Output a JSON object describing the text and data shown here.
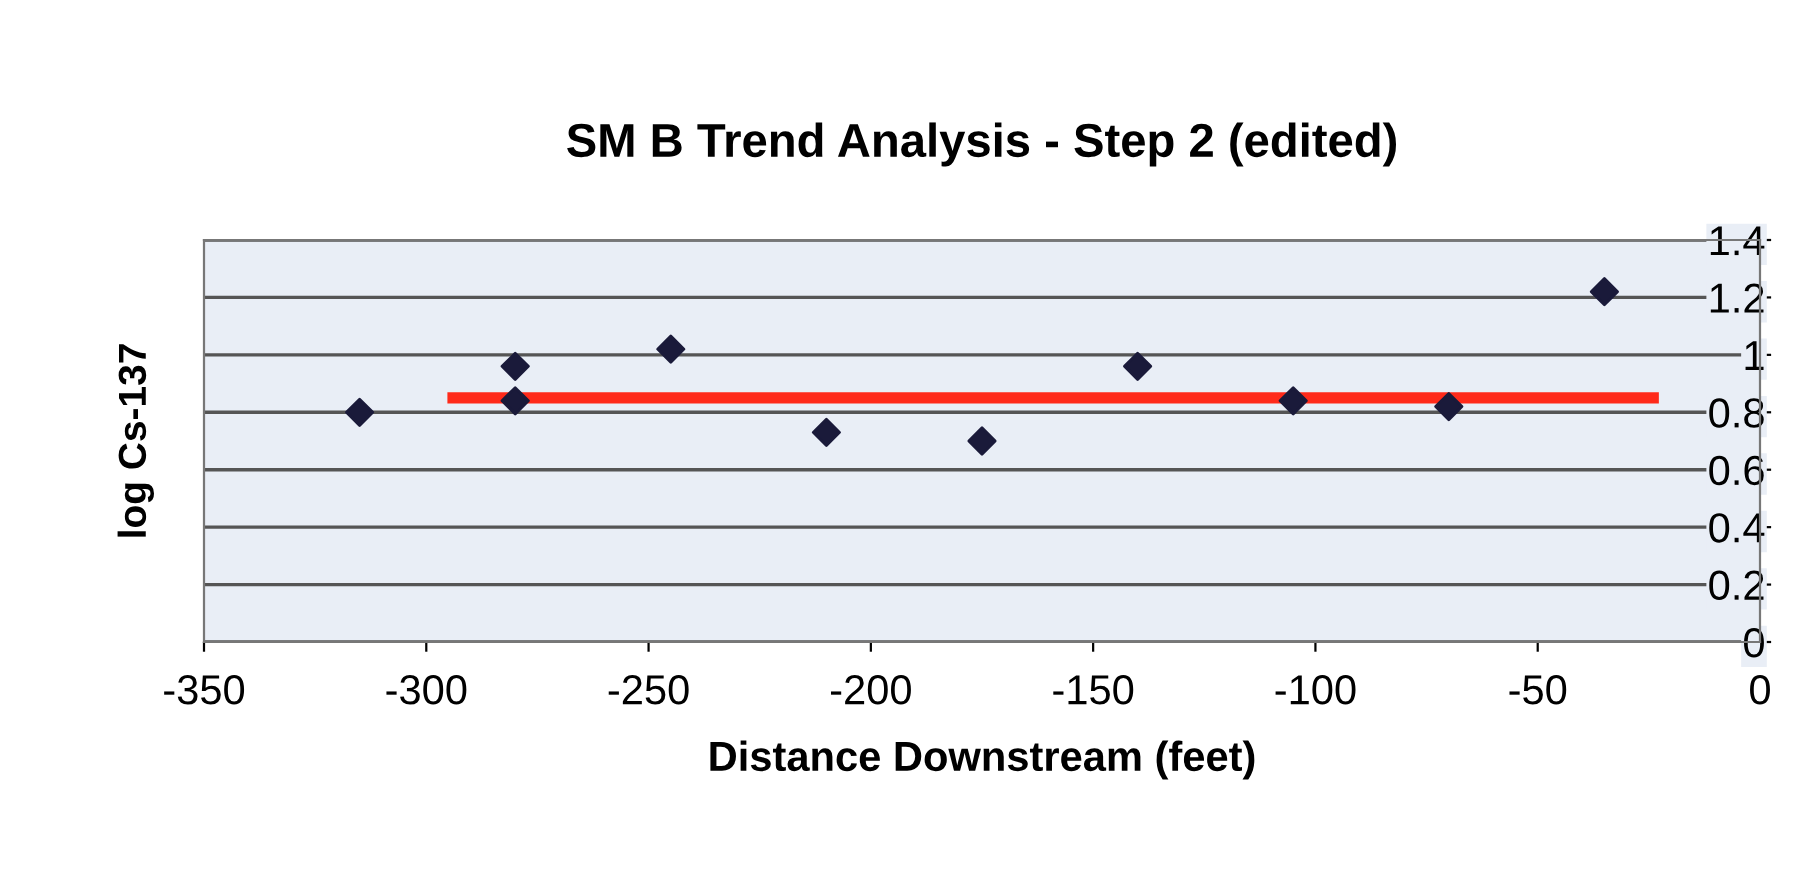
{
  "chart_data": {
    "type": "scatter",
    "title": "SM B Trend Analysis - Step 2 (edited)",
    "xlabel": "Distance Downstream (feet)",
    "ylabel": "log Cs-137",
    "series": [
      {
        "color": "#1a1a3a",
        "marker": "diamond",
        "x": [
          -315,
          -280,
          -280,
          -245,
          -210,
          -175,
          -140,
          -105,
          -70,
          -35
        ],
        "values": [
          0.8,
          0.96,
          0.84,
          1.02,
          0.73,
          0.7,
          0.96,
          0.84,
          0.82,
          1.22
        ]
      },
      {
        "type": "line",
        "color": "#ff2a1a",
        "x": [
          -294,
          -24
        ],
        "values": [
          0.85,
          0.85
        ]
      }
    ],
    "xlim": [
      -350,
      0
    ],
    "xticks": [
      -350,
      -300,
      -250,
      -200,
      -150,
      -100,
      -50,
      0
    ],
    "ylim": [
      0,
      1.4
    ],
    "yticks": [
      0,
      0.2,
      0.4,
      0.6,
      0.8,
      1,
      1.2,
      1.4
    ],
    "grid": "y"
  }
}
